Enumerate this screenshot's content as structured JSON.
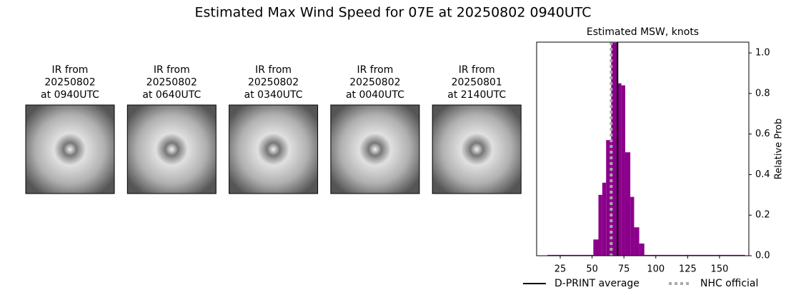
{
  "title": "Estimated Max Wind Speed for 07E at 20250802 0940UTC",
  "panels": [
    {
      "lines": [
        "IR from",
        "20250802",
        "at 0940UTC"
      ]
    },
    {
      "lines": [
        "IR from",
        "20250802",
        "at 0640UTC"
      ]
    },
    {
      "lines": [
        "IR from",
        "20250802",
        "at 0340UTC"
      ]
    },
    {
      "lines": [
        "IR from",
        "20250802",
        "at 0040UTC"
      ]
    },
    {
      "lines": [
        "IR from",
        "20250801",
        "at 2140UTC"
      ]
    }
  ],
  "chart_data": {
    "type": "histogram",
    "title": "Estimated MSW, knots",
    "ylabel": "Relative Prob",
    "bins": [
      15,
      51,
      55,
      58,
      61,
      65,
      70,
      73,
      76,
      80,
      83,
      87,
      91,
      170
    ],
    "values": [
      0.004,
      0.08,
      0.3,
      0.36,
      0.57,
      1.05,
      0.85,
      0.84,
      0.51,
      0.29,
      0.14,
      0.06,
      0.004
    ],
    "color": "#8b008b",
    "xlim": [
      6.5,
      173
    ],
    "ylim": [
      0,
      1.053
    ],
    "xticks": [
      25,
      50,
      75,
      100,
      125,
      150
    ],
    "yticks": [
      {
        "value": 0,
        "label": "0.0"
      },
      0.2,
      0.4,
      0.6,
      0.8,
      {
        "value": 1,
        "label": "1.0"
      }
    ],
    "markers": [
      {
        "name": "D-PRINT average",
        "x": 70,
        "color": "#000000",
        "style": "solid"
      },
      {
        "name": "NHC official",
        "x": 65,
        "color": "#aaaaaa",
        "style": "dotted"
      }
    ]
  }
}
